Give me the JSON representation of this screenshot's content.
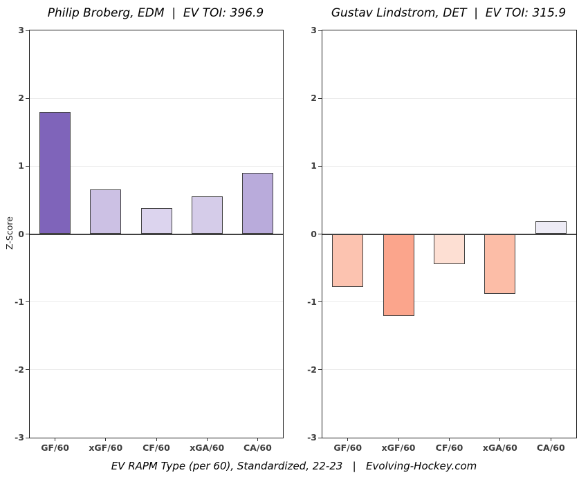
{
  "figure": {
    "ylabel": "Z-Score",
    "caption": "EV RAPM Type (per 60), Standardized, 22-23   |   Evolving-Hockey.com",
    "colors": {
      "background": "#ffffff",
      "frame": "#1f1f1f",
      "grid": "#ebebeb",
      "zero_line": "#404040",
      "bar_border": "#414141",
      "tick_label": "#3d3d3d"
    }
  },
  "chart_data": [
    {
      "type": "bar",
      "title": "Philip Broberg, EDM  |  EV TOI: 396.9",
      "player": "Philip Broberg",
      "team": "EDM",
      "ev_toi": "396.9",
      "categories": [
        "GF/60",
        "xGF/60",
        "CF/60",
        "xGA/60",
        "CA/60"
      ],
      "values": [
        1.8,
        0.66,
        0.38,
        0.56,
        0.9
      ],
      "bar_colors": [
        "#7f64ba",
        "#ccc1e4",
        "#dcd4ee",
        "#d5cce9",
        "#b9abdb"
      ],
      "ylabel": "Z-Score",
      "ylim": [
        -3,
        3
      ],
      "yticks": [
        3,
        2,
        1,
        0,
        -1,
        -2,
        -3
      ],
      "grid": true,
      "legend": "none"
    },
    {
      "type": "bar",
      "title": "Gustav Lindstrom, DET  |  EV TOI: 315.9",
      "player": "Gustav Lindstrom",
      "team": "DET",
      "ev_toi": "315.9",
      "categories": [
        "GF/60",
        "xGF/60",
        "CF/60",
        "xGA/60",
        "CA/60"
      ],
      "values": [
        -0.78,
        -1.21,
        -0.44,
        -0.88,
        0.19
      ],
      "bar_colors": [
        "#fcc3b0",
        "#fba58c",
        "#fddfd3",
        "#fcbda7",
        "#edebf5"
      ],
      "ylabel": "",
      "ylim": [
        -3,
        3
      ],
      "yticks": [
        3,
        2,
        1,
        0,
        -1,
        -2,
        -3
      ],
      "grid": true,
      "legend": "none"
    }
  ]
}
